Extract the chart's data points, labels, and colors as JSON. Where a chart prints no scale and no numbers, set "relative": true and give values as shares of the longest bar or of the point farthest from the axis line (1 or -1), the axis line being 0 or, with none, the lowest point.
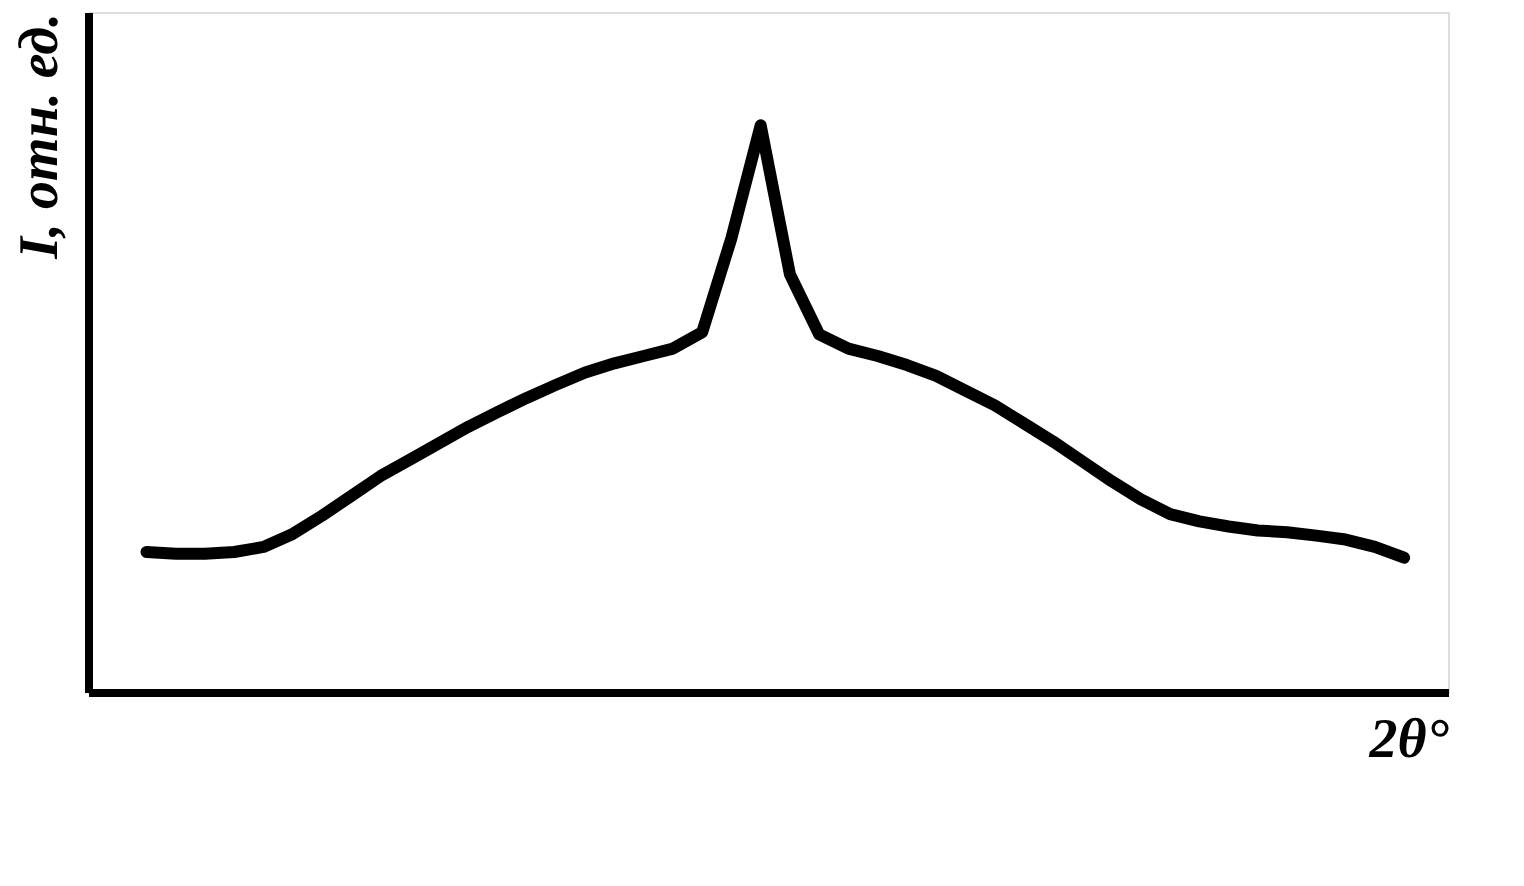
{
  "chart_data": {
    "type": "line",
    "relative": true,
    "xlabel": "2θ°",
    "ylabel": "I, отн. ед.",
    "grid": false,
    "legend": false,
    "marker": "none",
    "line_style": "solid",
    "categories": [
      null,
      null,
      null,
      null,
      null,
      null,
      null,
      null,
      null,
      null,
      null,
      null,
      null,
      null,
      null,
      null,
      null,
      null,
      null,
      null,
      null,
      null,
      null,
      null,
      null,
      null,
      null,
      null,
      null,
      null,
      null,
      null,
      null,
      null,
      null,
      null,
      null,
      null,
      null,
      null,
      null,
      null,
      null,
      null
    ],
    "series": [
      {
        "color": "#000000",
        "values": [
          0.247,
          0.244,
          0.244,
          0.247,
          0.256,
          0.279,
          0.311,
          0.346,
          0.381,
          0.41,
          0.439,
          0.468,
          0.494,
          0.519,
          0.542,
          0.564,
          0.58,
          0.593,
          0.606,
          0.635,
          0.801,
          1.0,
          0.737,
          0.631,
          0.606,
          0.593,
          0.577,
          0.558,
          0.532,
          0.506,
          0.474,
          0.442,
          0.407,
          0.372,
          0.34,
          0.314,
          0.301,
          0.292,
          0.285,
          0.282,
          0.276,
          0.269,
          0.256,
          0.237
        ]
      }
    ]
  }
}
